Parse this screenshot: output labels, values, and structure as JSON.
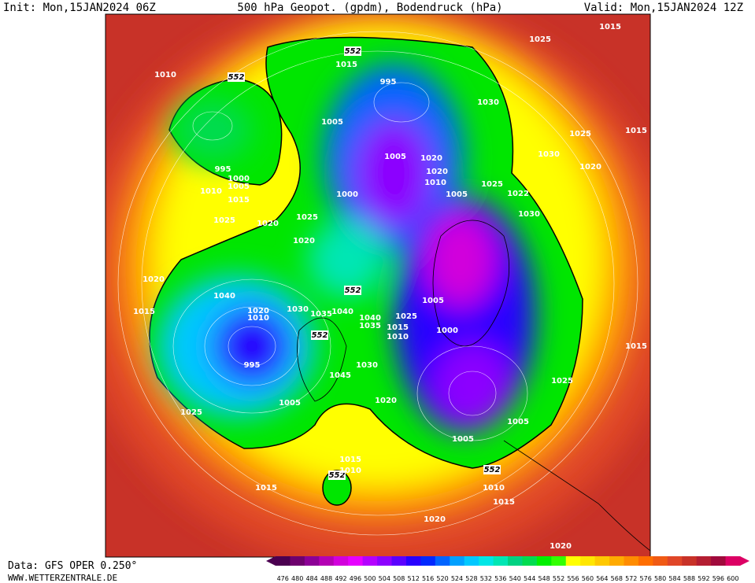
{
  "header": {
    "init": "Init: Mon,15JAN2024 06Z",
    "title": "500 hPa Geopot. (gpdm), Bodendruck (hPa)",
    "valid": "Valid: Mon,15JAN2024 12Z"
  },
  "footer": {
    "source": "Data: GFS OPER 0.250°",
    "site": "WWW.WETTERZENTRALE.DE"
  },
  "colorbar": {
    "values": [
      476,
      480,
      484,
      488,
      492,
      496,
      500,
      504,
      508,
      512,
      516,
      520,
      524,
      528,
      532,
      536,
      540,
      544,
      548,
      552,
      556,
      560,
      564,
      568,
      572,
      576,
      580,
      584,
      588,
      592,
      596,
      600
    ],
    "colors": [
      "#4b0050",
      "#6e006e",
      "#8c0096",
      "#b400b4",
      "#d200dc",
      "#e600ff",
      "#b400ff",
      "#8c00ff",
      "#5a00ff",
      "#2800ff",
      "#0028ff",
      "#0064ff",
      "#00a0ff",
      "#00c8ff",
      "#00e6e6",
      "#00e6b4",
      "#00d282",
      "#00dc50",
      "#00f000",
      "#32ff00",
      "#ffff00",
      "#ffe600",
      "#ffc800",
      "#ffaa00",
      "#ff8c00",
      "#ff6e00",
      "#f05a14",
      "#e04628",
      "#c83228",
      "#b41e32",
      "#a00a3c",
      "#dc0064"
    ]
  },
  "map": {
    "labels": [
      "1015",
      "1025",
      "552",
      "1015",
      "552",
      "1010",
      "995",
      "1030",
      "1005",
      "1015",
      "1025",
      "1030",
      "1020",
      "995",
      "1005",
      "1020",
      "1000",
      "1005",
      "1020",
      "1010",
      "1025",
      "1010",
      "1015",
      "1000",
      "1005",
      "1022",
      "1030",
      "1025",
      "1025",
      "1020",
      "1020",
      "1020",
      "1040",
      "552",
      "1005",
      "1020",
      "1030",
      "1010",
      "1035",
      "1040",
      "1025",
      "1040",
      "1035",
      "1015",
      "1015",
      "1010",
      "1000",
      "552",
      "1015",
      "995",
      "1030",
      "1045",
      "1025",
      "1020",
      "1005",
      "1025",
      "1005",
      "1005",
      "1015",
      "552",
      "552",
      "1010",
      "1015",
      "1010",
      "1015",
      "1020",
      "1020"
    ]
  }
}
